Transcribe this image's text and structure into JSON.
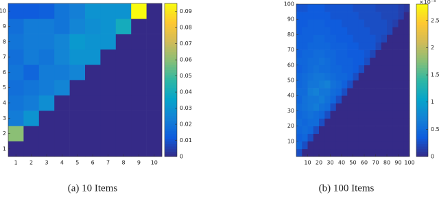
{
  "chart_data": [
    {
      "type": "heatmap",
      "caption": "(a) 10 Items",
      "colormap": "parula",
      "xlim": [
        0.5,
        10.5
      ],
      "ylim": [
        0.5,
        10.5
      ],
      "xticks": [
        1,
        2,
        3,
        4,
        5,
        6,
        7,
        8,
        9,
        10
      ],
      "yticks": [
        1,
        2,
        3,
        4,
        5,
        6,
        7,
        8,
        9,
        10
      ],
      "x": [
        1,
        2,
        3,
        4,
        5,
        6,
        7,
        8,
        9,
        10
      ],
      "y": [
        1,
        2,
        3,
        4,
        5,
        6,
        7,
        8,
        9,
        10
      ],
      "clim": [
        0,
        0.095
      ],
      "cticks": [
        0,
        0.01,
        0.02,
        0.03,
        0.04,
        0.05,
        0.06,
        0.07,
        0.08,
        0.09
      ],
      "z": [
        [
          0,
          0,
          0,
          0,
          0,
          0,
          0,
          0,
          0,
          0
        ],
        [
          0.06,
          0,
          0,
          0,
          0,
          0,
          0,
          0,
          0,
          0
        ],
        [
          0.022,
          0.03,
          0,
          0,
          0,
          0,
          0,
          0,
          0,
          0
        ],
        [
          0.02,
          0.022,
          0.028,
          0,
          0,
          0,
          0,
          0,
          0,
          0
        ],
        [
          0.018,
          0.02,
          0.022,
          0.025,
          0,
          0,
          0,
          0,
          0,
          0
        ],
        [
          0.02,
          0.015,
          0.022,
          0.022,
          0.025,
          0,
          0,
          0,
          0,
          0
        ],
        [
          0.018,
          0.022,
          0.02,
          0.025,
          0.03,
          0.03,
          0,
          0,
          0,
          0
        ],
        [
          0.02,
          0.022,
          0.022,
          0.025,
          0.032,
          0.03,
          0.03,
          0,
          0,
          0
        ],
        [
          0.018,
          0.022,
          0.022,
          0.02,
          0.025,
          0.028,
          0.03,
          0.04,
          0,
          0
        ],
        [
          0.012,
          0.012,
          0.013,
          0.02,
          0.023,
          0.03,
          0.03,
          0.03,
          0.095,
          0
        ]
      ]
    },
    {
      "type": "heatmap",
      "caption": "(b) 100 Items",
      "colormap": "parula",
      "xlim": [
        0,
        100
      ],
      "ylim": [
        0,
        100
      ],
      "xticks": [
        10,
        20,
        30,
        40,
        50,
        60,
        70,
        80,
        90,
        100
      ],
      "yticks": [
        10,
        20,
        30,
        40,
        50,
        60,
        70,
        80,
        90,
        100
      ],
      "clim": [
        0,
        2.8
      ],
      "cticks": [
        0,
        0.5,
        1,
        1.5,
        2,
        2.5
      ],
      "colorbar_label": "×10⁻³",
      "z": [
        [
          0.25,
          0,
          0,
          0,
          0,
          0,
          0,
          0,
          0,
          0,
          0,
          0,
          0,
          0,
          0,
          0,
          0,
          0,
          0,
          0
        ],
        [
          0.45,
          0.25,
          0,
          0,
          0,
          0,
          0,
          0,
          0,
          0,
          0,
          0,
          0,
          0,
          0,
          0,
          0,
          0,
          0,
          0
        ],
        [
          0.4,
          0.45,
          0.25,
          0,
          0,
          0,
          0,
          0,
          0,
          0,
          0,
          0,
          0,
          0,
          0,
          0,
          0,
          0,
          0,
          0
        ],
        [
          0.45,
          0.5,
          0.45,
          0.25,
          0,
          0,
          0,
          0,
          0,
          0,
          0,
          0,
          0,
          0,
          0,
          0,
          0,
          0,
          0,
          0
        ],
        [
          0.5,
          0.45,
          0.5,
          0.5,
          0.25,
          0,
          0,
          0,
          0,
          0,
          0,
          0,
          0,
          0,
          0,
          0,
          0,
          0,
          0,
          0
        ],
        [
          0.45,
          0.5,
          0.55,
          0.5,
          0.45,
          0.25,
          0,
          0,
          0,
          0,
          0,
          0,
          0,
          0,
          0,
          0,
          0,
          0,
          0,
          0
        ],
        [
          0.5,
          0.55,
          0.6,
          0.65,
          0.55,
          0.5,
          0.25,
          0,
          0,
          0,
          0,
          0,
          0,
          0,
          0,
          0,
          0,
          0,
          0,
          0
        ],
        [
          0.45,
          0.55,
          0.6,
          0.6,
          0.65,
          0.55,
          0.45,
          0.25,
          0,
          0,
          0,
          0,
          0,
          0,
          0,
          0,
          0,
          0,
          0,
          0
        ],
        [
          0.5,
          0.5,
          0.65,
          0.7,
          0.6,
          0.6,
          0.5,
          0.45,
          0.25,
          0,
          0,
          0,
          0,
          0,
          0,
          0,
          0,
          0,
          0,
          0
        ],
        [
          0.45,
          0.5,
          0.6,
          0.6,
          0.65,
          0.7,
          0.55,
          0.5,
          0.4,
          0.25,
          0,
          0,
          0,
          0,
          0,
          0,
          0,
          0,
          0,
          0
        ],
        [
          0.45,
          0.5,
          0.55,
          0.6,
          0.6,
          0.55,
          0.5,
          0.45,
          0.45,
          0.4,
          0.25,
          0,
          0,
          0,
          0,
          0,
          0,
          0,
          0,
          0
        ],
        [
          0.4,
          0.45,
          0.5,
          0.55,
          0.5,
          0.5,
          0.45,
          0.45,
          0.4,
          0.4,
          0.35,
          0.25,
          0,
          0,
          0,
          0,
          0,
          0,
          0,
          0
        ],
        [
          0.45,
          0.45,
          0.5,
          0.5,
          0.55,
          0.5,
          0.45,
          0.4,
          0.4,
          0.4,
          0.35,
          0.35,
          0.25,
          0,
          0,
          0,
          0,
          0,
          0,
          0
        ],
        [
          0.4,
          0.45,
          0.45,
          0.5,
          0.5,
          0.45,
          0.45,
          0.4,
          0.4,
          0.35,
          0.35,
          0.35,
          0.3,
          0.2,
          0,
          0,
          0,
          0,
          0,
          0
        ],
        [
          0.4,
          0.4,
          0.45,
          0.45,
          0.45,
          0.45,
          0.4,
          0.4,
          0.4,
          0.35,
          0.35,
          0.3,
          0.3,
          0.3,
          0.2,
          0,
          0,
          0,
          0,
          0
        ],
        [
          0.4,
          0.4,
          0.4,
          0.45,
          0.45,
          0.4,
          0.4,
          0.35,
          0.35,
          0.35,
          0.3,
          0.3,
          0.3,
          0.3,
          0.25,
          0.2,
          0,
          0,
          0,
          0
        ],
        [
          0.35,
          0.4,
          0.4,
          0.4,
          0.4,
          0.4,
          0.35,
          0.35,
          0.35,
          0.3,
          0.3,
          0.3,
          0.3,
          0.25,
          0.25,
          0.25,
          0.2,
          0,
          0,
          0
        ],
        [
          0.35,
          0.35,
          0.4,
          0.4,
          0.4,
          0.35,
          0.35,
          0.35,
          0.3,
          0.3,
          0.3,
          0.3,
          0.25,
          0.25,
          0.25,
          0.25,
          0.2,
          0.15,
          0,
          0
        ],
        [
          0.35,
          0.35,
          0.35,
          0.35,
          0.35,
          0.35,
          0.3,
          0.3,
          0.3,
          0.3,
          0.3,
          0.25,
          0.25,
          0.25,
          0.25,
          0.2,
          0.2,
          0.2,
          0.15,
          0
        ],
        [
          0.3,
          0.3,
          0.35,
          0.35,
          0.35,
          0.3,
          0.3,
          0.3,
          0.3,
          0.3,
          0.25,
          0.25,
          0.25,
          0.25,
          0.2,
          0.2,
          0.2,
          0.2,
          0.15,
          0.1
        ]
      ]
    }
  ]
}
